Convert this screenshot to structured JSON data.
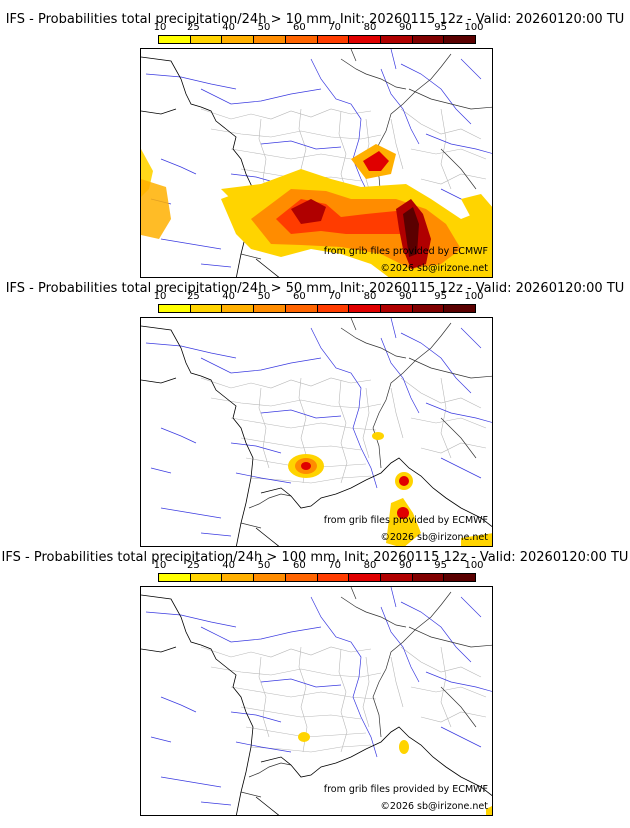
{
  "legend": {
    "ticks": [
      "10",
      "25",
      "40",
      "50",
      "60",
      "70",
      "80",
      "90",
      "95",
      "100"
    ],
    "colors": [
      "#ffff00",
      "#ffd400",
      "#ffb000",
      "#ff8c00",
      "#ff6400",
      "#ff3c00",
      "#e00000",
      "#b00000",
      "#800000",
      "#5a0000"
    ]
  },
  "panels": [
    {
      "title": "IFS - Probabilities total precipitation/24h > 10 mm, Init: 20260115 12z - Valid: 20260120:00 TU",
      "credit_line1": "from grib files provided by ECMWF",
      "credit_line2": "©2026 sb@irizone.net"
    },
    {
      "title": "IFS - Probabilities total precipitation/24h > 50 mm, Init: 20260115 12z - Valid: 20260120:00 TU",
      "credit_line1": "from grib files provided by ECMWF",
      "credit_line2": "©2026 sb@irizone.net"
    },
    {
      "title": "IFS - Probabilities total precipitation/24h > 100 mm, Init: 20260115 12z - Valid: 20260120:00 TU",
      "credit_line1": "from grib files provided by ECMWF",
      "credit_line2": "©2026 sb@irizone.net"
    }
  ]
}
